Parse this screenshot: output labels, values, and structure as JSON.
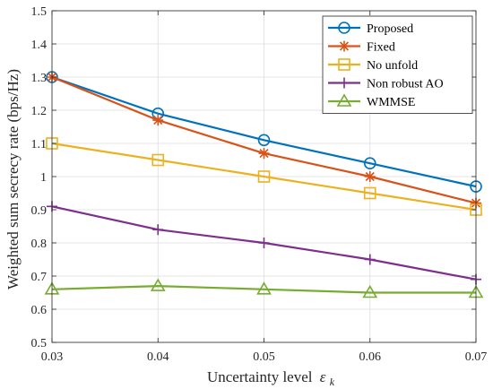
{
  "chart_data": {
    "type": "line",
    "xlabel": "Uncertainty level",
    "xlabel_symbol": "ε",
    "xlabel_subscript": "k",
    "ylabel": "Weighted sum secrecy rate (bps/Hz)",
    "x": [
      0.03,
      0.04,
      0.05,
      0.06,
      0.07
    ],
    "xlim": [
      0.03,
      0.07
    ],
    "ylim": [
      0.5,
      1.5
    ],
    "xticks": [
      "0.03",
      "0.04",
      "0.05",
      "0.06",
      "0.07"
    ],
    "yticks": [
      "0.5",
      "0.6",
      "0.7",
      "0.8",
      "0.9",
      "1",
      "1.1",
      "1.2",
      "1.3",
      "1.4",
      "1.5"
    ],
    "grid": true,
    "legend_position": "top-right",
    "series": [
      {
        "name": "Proposed",
        "color": "#0072BD",
        "marker": "circle",
        "values": [
          1.3,
          1.19,
          1.11,
          1.04,
          0.97
        ]
      },
      {
        "name": "Fixed",
        "color": "#D95319",
        "marker": "asterisk",
        "values": [
          1.3,
          1.17,
          1.07,
          1.0,
          0.92
        ]
      },
      {
        "name": "No unfold",
        "color": "#EDB120",
        "marker": "square",
        "values": [
          1.1,
          1.05,
          1.0,
          0.95,
          0.9
        ]
      },
      {
        "name": "Non robust AO",
        "color": "#7E2F8E",
        "marker": "plus",
        "values": [
          0.91,
          0.84,
          0.8,
          0.75,
          0.69
        ]
      },
      {
        "name": "WMMSE",
        "color": "#77AC30",
        "marker": "triangle",
        "values": [
          0.66,
          0.67,
          0.66,
          0.65,
          0.65
        ]
      }
    ]
  }
}
